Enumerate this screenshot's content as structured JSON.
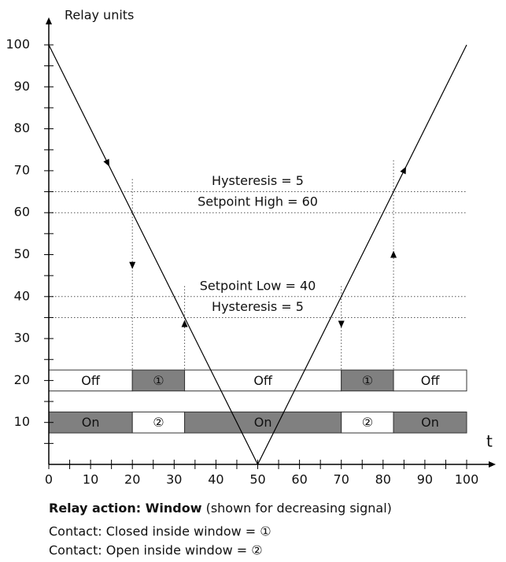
{
  "chart_data": {
    "type": "line",
    "y_label": "Relay units",
    "x_label": "t",
    "x": [
      0,
      50,
      100
    ],
    "values": [
      100,
      0,
      100
    ],
    "color": "#000000",
    "xlim": [
      0,
      100
    ],
    "ylim": [
      0,
      100
    ],
    "xticks": [
      0,
      10,
      20,
      30,
      40,
      50,
      60,
      70,
      80,
      90,
      100
    ],
    "yticks": [
      10,
      20,
      30,
      40,
      50,
      60,
      70,
      80,
      90,
      100
    ],
    "xminor_ticks": [
      5,
      15,
      25,
      35,
      45,
      55,
      65,
      75,
      85,
      95
    ],
    "yminor_ticks": [
      5,
      15,
      25,
      35,
      45,
      55,
      65,
      75,
      85,
      95
    ],
    "hlines": [
      {
        "value": 65,
        "label": "Hysteresis = 5"
      },
      {
        "value": 60,
        "label": "Setpoint High = 60"
      },
      {
        "value": 40,
        "label": "Setpoint Low = 40"
      },
      {
        "value": 35,
        "label": "Hysteresis = 5"
      }
    ],
    "vlines": [
      {
        "x": 20,
        "top": 68,
        "direction": "down"
      },
      {
        "x": 32.5,
        "top": 42.5,
        "direction": "up"
      },
      {
        "x": 70,
        "top": 42.5,
        "direction": "down"
      },
      {
        "x": 82.5,
        "top": 72.5,
        "direction": "up"
      }
    ],
    "rows": [
      {
        "low": 17.5,
        "high": 22.5,
        "segments": [
          {
            "start": 0,
            "end": 20,
            "label": "Off",
            "color": "#ffffff"
          },
          {
            "start": 20,
            "end": 32.5,
            "label": "①",
            "color": "#808080"
          },
          {
            "start": 32.5,
            "end": 70,
            "label": "Off",
            "color": "#ffffff"
          },
          {
            "start": 70,
            "end": 82.5,
            "label": "①",
            "color": "#808080"
          },
          {
            "start": 82.5,
            "end": 100,
            "label": "Off",
            "color": "#ffffff"
          }
        ]
      },
      {
        "low": 7.5,
        "high": 12.5,
        "segments": [
          {
            "start": 0,
            "end": 20,
            "label": "On",
            "color": "#808080"
          },
          {
            "start": 20,
            "end": 32.5,
            "label": "②",
            "color": "#ffffff"
          },
          {
            "start": 32.5,
            "end": 70,
            "label": "On",
            "color": "#808080"
          },
          {
            "start": 70,
            "end": 82.5,
            "label": "②",
            "color": "#ffffff"
          },
          {
            "start": 82.5,
            "end": 100,
            "label": "On",
            "color": "#808080"
          }
        ]
      }
    ]
  },
  "footer": {
    "bold": "Relay action: Window",
    "rest": "(shown for decreasing signal)",
    "lines": [
      "Contact: Closed inside window = ①",
      "Contact: Open inside window = ②"
    ]
  }
}
